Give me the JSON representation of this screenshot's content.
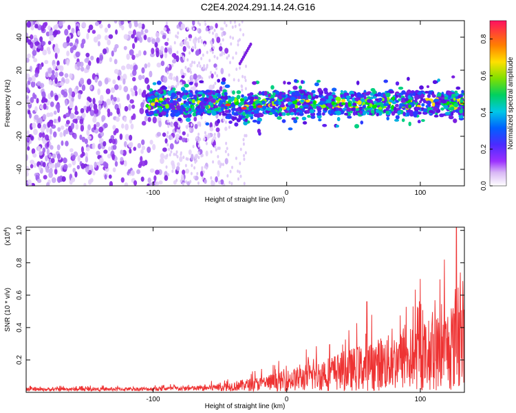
{
  "title": "C2E4.2024.291.14.24.G16",
  "chart_data": [
    {
      "type": "heatmap",
      "xlabel": "Height of straight line (km)",
      "ylabel": "Frequency (Hz)",
      "xlim": [
        -195,
        133
      ],
      "ylim": [
        -50,
        50
      ],
      "xticks": [
        "-100",
        "0",
        "100"
      ],
      "yticks": [
        "-40",
        "-20",
        "0",
        "20",
        "40"
      ],
      "colorbar": {
        "label": "Normalized spectral amplitude",
        "ticks": [
          "0.0",
          "0.2",
          "0.4",
          "0.6",
          "0.8"
        ],
        "range": [
          0,
          0.9
        ]
      }
    },
    {
      "type": "line",
      "xlabel": "Height of straight line (km)",
      "ylabel": "SNR (10 * v/v)",
      "scale_label": "(x10",
      "scale_exp": "4",
      "xlim": [
        -195,
        133
      ],
      "ylim": [
        0,
        1.02
      ],
      "xticks": [
        "-100",
        "0",
        "100"
      ],
      "yticks": [
        "0.2",
        "0.4",
        "0.6",
        "0.8",
        "1.0"
      ],
      "color": "#ee3333",
      "series": [
        {
          "x": [
            -195,
            -180,
            -160,
            -140,
            -120,
            -100,
            -80,
            -60,
            -40,
            -20,
            0,
            20,
            40,
            60,
            80,
            100,
            110,
            120,
            127,
            133
          ],
          "y": [
            0.02,
            0.02,
            0.022,
            0.022,
            0.023,
            0.025,
            0.03,
            0.035,
            0.06,
            0.09,
            0.13,
            0.18,
            0.24,
            0.3,
            0.36,
            0.42,
            0.46,
            0.52,
            0.58,
            0.6
          ],
          "peaks": [
            [
              118,
              0.82
            ],
            [
              127,
              1.02
            ],
            [
              130,
              0.74
            ],
            [
              100,
              0.7
            ],
            [
              60,
              0.56
            ]
          ]
        }
      ]
    }
  ]
}
